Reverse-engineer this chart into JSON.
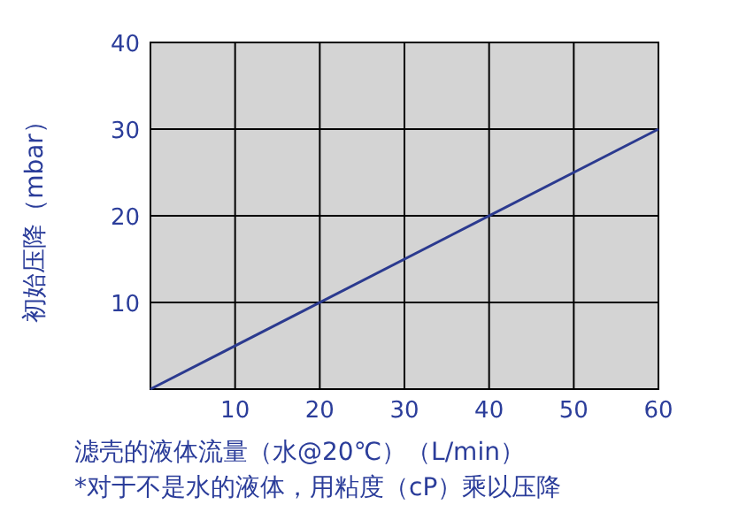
{
  "chart_data": {
    "type": "line",
    "xlabel": "滤壳的液体流量（水@20℃）（L/min）",
    "ylabel": "初始压降（mbar）",
    "annotations": [
      "*对于不是水的液体，用粘度（cP）乘以压降"
    ],
    "x": [
      0,
      60
    ],
    "series": [
      {
        "color": "#2b3a8f",
        "values": [
          0,
          30
        ]
      }
    ],
    "xlim": [
      0,
      60
    ],
    "ylim": [
      0,
      40
    ],
    "xticks": [
      {
        "value": 0,
        "label": null
      },
      10,
      20,
      30,
      40,
      50,
      60
    ],
    "yticks": [
      10,
      20,
      30,
      40
    ],
    "grid": true
  }
}
